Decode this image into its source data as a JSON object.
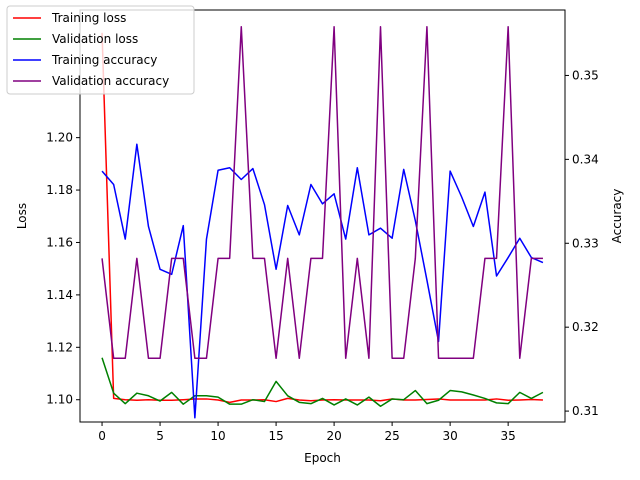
{
  "chart_data": {
    "type": "line",
    "xlabel": "Epoch",
    "ylabel_left": "Loss",
    "ylabel_right": "Accuracy",
    "xlim": [
      -1.9,
      39.9
    ],
    "ylim_left": [
      1.0915,
      1.2487
    ],
    "ylim_right": [
      0.3087,
      0.3578
    ],
    "x_ticks": [
      0,
      5,
      10,
      15,
      20,
      25,
      30,
      35
    ],
    "y_ticks_left": [
      1.1,
      1.12,
      1.14,
      1.16,
      1.18,
      1.2
    ],
    "y_tick_labels_left": [
      "1.10",
      "1.12",
      "1.14",
      "1.16",
      "1.18",
      "1.20"
    ],
    "y_ticks_right": [
      0.31,
      0.32,
      0.33,
      0.34,
      0.35
    ],
    "y_tick_labels_right": [
      "0.31",
      "0.32",
      "0.33",
      "0.34",
      "0.35"
    ],
    "grid": false,
    "legend_position": "top-left",
    "x": [
      0,
      1,
      2,
      3,
      4,
      5,
      6,
      7,
      8,
      9,
      10,
      11,
      12,
      13,
      14,
      15,
      16,
      17,
      18,
      19,
      20,
      21,
      22,
      23,
      24,
      25,
      26,
      27,
      28,
      29,
      30,
      31,
      32,
      33,
      34,
      35,
      36,
      37,
      38
    ],
    "series": [
      {
        "name": "Training loss",
        "axis": "left",
        "color": "#ff0000",
        "values": [
          1.24,
          1.1005,
          1.1,
          1.0998,
          1.1,
          1.0998,
          1.0998,
          1.1,
          1.1003,
          1.1003,
          1.0999,
          1.099,
          1.0999,
          1.0999,
          1.1,
          1.0993,
          1.1005,
          1.0999,
          1.0996,
          1.0999,
          1.1,
          1.0999,
          1.0999,
          1.0999,
          1.0996,
          1.1003,
          1.0999,
          1.0999,
          1.1001,
          1.1003,
          1.0999,
          1.0999,
          1.0999,
          1.0999,
          1.1003,
          1.0998,
          1.0999,
          1.1001,
          1.0999
        ]
      },
      {
        "name": "Validation loss",
        "axis": "left",
        "color": "#008000",
        "values": [
          1.116,
          1.1025,
          1.0985,
          1.1025,
          1.1015,
          1.0995,
          1.1028,
          1.0983,
          1.1015,
          1.1015,
          1.101,
          1.0983,
          1.0983,
          1.1,
          1.0993,
          1.107,
          1.1015,
          1.099,
          1.0985,
          1.1005,
          1.098,
          1.1003,
          1.098,
          1.101,
          1.0975,
          1.1003,
          1.1,
          1.1035,
          1.0985,
          1.0998,
          1.1035,
          1.103,
          1.1018,
          1.1005,
          1.0988,
          1.0985,
          1.1028,
          1.1005,
          1.1028
        ]
      },
      {
        "name": "Training accuracy",
        "axis": "right",
        "color": "#0000ff",
        "values": [
          0.3386,
          0.337,
          0.3305,
          0.3418,
          0.332,
          0.3269,
          0.3263,
          0.3321,
          0.3092,
          0.3305,
          0.3387,
          0.339,
          0.3376,
          0.3389,
          0.3346,
          0.3269,
          0.3345,
          0.331,
          0.337,
          0.3347,
          0.3359,
          0.3305,
          0.339,
          0.331,
          0.3318,
          0.3306,
          0.3388,
          0.3327,
          0.3256,
          0.3183,
          0.3386,
          0.3355,
          0.332,
          0.3361,
          0.3261,
          0.3283,
          0.3306,
          0.3283,
          0.3277
        ]
      },
      {
        "name": "Validation accuracy",
        "axis": "right",
        "color": "#800080",
        "values": [
          0.3282,
          0.3163,
          0.3163,
          0.3282,
          0.3163,
          0.3163,
          0.3282,
          0.3282,
          0.3163,
          0.3163,
          0.3282,
          0.3282,
          0.3558,
          0.3282,
          0.3282,
          0.3163,
          0.3282,
          0.3163,
          0.3282,
          0.3282,
          0.3558,
          0.3163,
          0.3282,
          0.3163,
          0.3558,
          0.3163,
          0.3163,
          0.3282,
          0.3558,
          0.3163,
          0.3163,
          0.3163,
          0.3163,
          0.3282,
          0.3282,
          0.3558,
          0.3163,
          0.3282,
          0.3282
        ]
      }
    ]
  }
}
